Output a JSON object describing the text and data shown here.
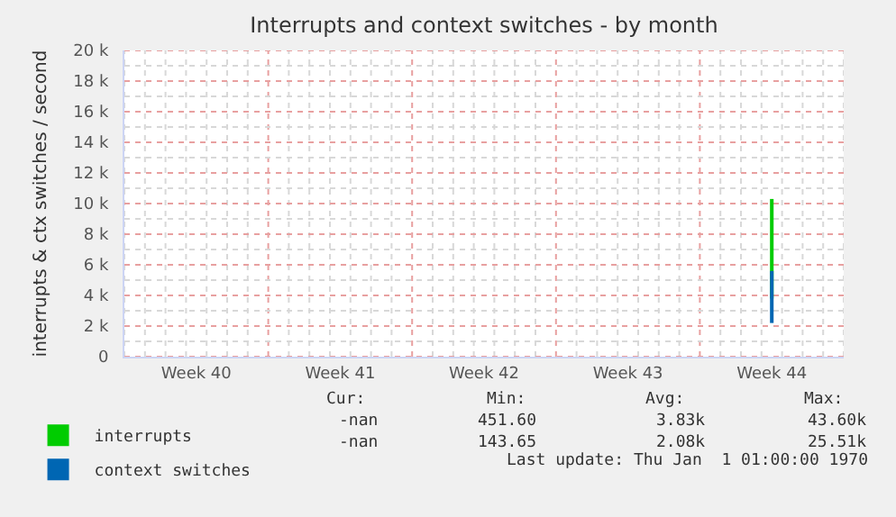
{
  "chart_data": {
    "type": "bar",
    "title": "Interrupts and context switches - by month",
    "ylabel": "interrupts & ctx switches / second",
    "categories": [
      "Week 40",
      "Week 41",
      "Week 42",
      "Week 43",
      "Week 44"
    ],
    "series": [
      {
        "name": "interrupts",
        "color": "#00cc00",
        "values": [
          null,
          null,
          null,
          null,
          6500
        ],
        "base": [
          null,
          null,
          null,
          null,
          3800
        ]
      },
      {
        "name": "context switches",
        "color": "#0066b3",
        "values": [
          null,
          null,
          null,
          null,
          3400
        ],
        "base": [
          null,
          null,
          null,
          null,
          2200
        ]
      }
    ],
    "ylim": [
      0,
      20000
    ],
    "yticks": [
      {
        "value": 0,
        "label": "0"
      },
      {
        "value": 2000,
        "label": "2 k"
      },
      {
        "value": 4000,
        "label": "4 k"
      },
      {
        "value": 6000,
        "label": "6 k"
      },
      {
        "value": 8000,
        "label": "8 k"
      },
      {
        "value": 10000,
        "label": "10 k"
      },
      {
        "value": 12000,
        "label": "12 k"
      },
      {
        "value": 14000,
        "label": "14 k"
      },
      {
        "value": 16000,
        "label": "16 k"
      },
      {
        "value": 18000,
        "label": "18 k"
      },
      {
        "value": 20000,
        "label": "20 k"
      }
    ],
    "grid": true,
    "legend": "bottom left",
    "annotations": [
      "Cur:",
      "Min:",
      "Avg:",
      "Max:",
      "-nan",
      "451.60",
      "3.83k",
      "43.60k",
      "-nan",
      "143.65",
      "2.08k",
      "25.51k",
      "Last update: Thu Jan  1 01:00:00 1970"
    ]
  }
}
